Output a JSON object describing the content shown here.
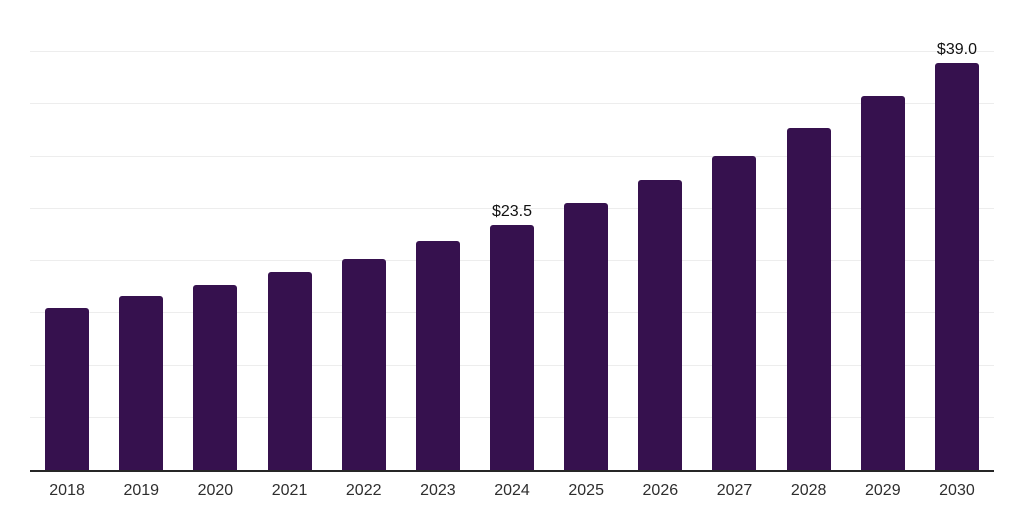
{
  "chart_data": {
    "type": "bar",
    "title": "",
    "xlabel": "",
    "ylabel": "",
    "categories": [
      "2018",
      "2019",
      "2020",
      "2021",
      "2022",
      "2023",
      "2024",
      "2025",
      "2026",
      "2027",
      "2028",
      "2029",
      "2030"
    ],
    "values": [
      15.5,
      16.7,
      17.7,
      19.0,
      20.2,
      21.9,
      23.5,
      25.6,
      27.8,
      30.1,
      32.7,
      35.8,
      39.0
    ],
    "data_labels": [
      "",
      "",
      "",
      "",
      "",
      "",
      "$23.5",
      "",
      "",
      "",
      "",
      "",
      "$39.0"
    ],
    "ylim": [
      0,
      45
    ],
    "gridline_step": 5,
    "grid_on": true,
    "legend": "none",
    "colors": {
      "bar": "#36114E",
      "axis_line": "#262626",
      "gridline": "#ededed",
      "tick_label": "#2e2e2e",
      "data_label": "#111111",
      "background": "#ffffff"
    }
  }
}
